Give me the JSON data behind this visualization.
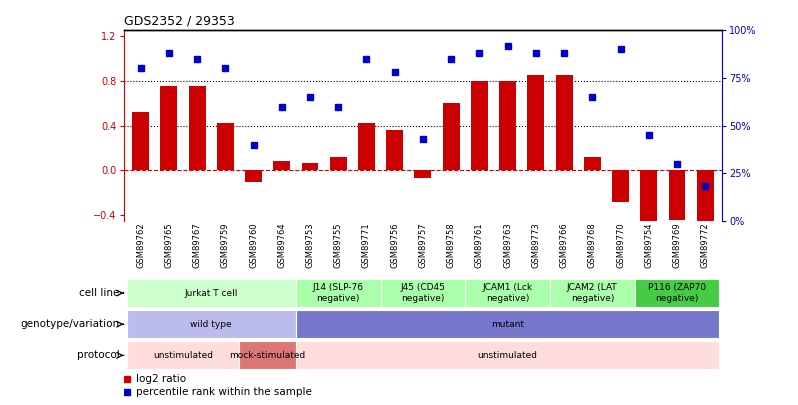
{
  "title": "GDS2352 / 29353",
  "samples": [
    "GSM89762",
    "GSM89765",
    "GSM89767",
    "GSM89759",
    "GSM89760",
    "GSM89764",
    "GSM89753",
    "GSM89755",
    "GSM89771",
    "GSM89756",
    "GSM89757",
    "GSM89758",
    "GSM89761",
    "GSM89763",
    "GSM89773",
    "GSM89766",
    "GSM89768",
    "GSM89770",
    "GSM89754",
    "GSM89769",
    "GSM89772"
  ],
  "log2_ratio": [
    0.52,
    0.75,
    0.75,
    0.42,
    -0.1,
    0.08,
    0.07,
    0.12,
    0.42,
    0.36,
    -0.07,
    0.6,
    0.8,
    0.8,
    0.85,
    0.85,
    0.12,
    -0.28,
    -0.55,
    -0.44,
    -0.48
  ],
  "percentile": [
    0.8,
    0.88,
    0.85,
    0.8,
    0.4,
    0.6,
    0.65,
    0.6,
    0.85,
    0.78,
    0.43,
    0.85,
    0.88,
    0.92,
    0.88,
    0.88,
    0.65,
    0.9,
    0.45,
    0.3,
    0.18
  ],
  "bar_color": "#cc0000",
  "dot_color": "#0000cc",
  "left_ylim": [
    -0.45,
    1.25
  ],
  "right_ylim": [
    0,
    100
  ],
  "left_yticks": [
    -0.4,
    0.0,
    0.4,
    0.8,
    1.2
  ],
  "right_yticks": [
    0,
    25,
    50,
    75,
    100
  ],
  "right_yticklabels": [
    "0%",
    "25%",
    "50%",
    "75%",
    "100%"
  ],
  "hlines": [
    0.8,
    0.4
  ],
  "cell_line_groups": [
    {
      "label": "Jurkat T cell",
      "start": 0,
      "end": 6,
      "color": "#ccffcc"
    },
    {
      "label": "J14 (SLP-76\nnegative)",
      "start": 6,
      "end": 9,
      "color": "#aaffaa"
    },
    {
      "label": "J45 (CD45\nnegative)",
      "start": 9,
      "end": 12,
      "color": "#aaffaa"
    },
    {
      "label": "JCAM1 (Lck\nnegative)",
      "start": 12,
      "end": 15,
      "color": "#aaffaa"
    },
    {
      "label": "JCAM2 (LAT\nnegative)",
      "start": 15,
      "end": 18,
      "color": "#aaffaa"
    },
    {
      "label": "P116 (ZAP70\nnegative)",
      "start": 18,
      "end": 21,
      "color": "#44cc44"
    }
  ],
  "genotype_groups": [
    {
      "label": "wild type",
      "start": 0,
      "end": 6,
      "color": "#bbbbee"
    },
    {
      "label": "mutant",
      "start": 6,
      "end": 21,
      "color": "#7777cc"
    }
  ],
  "protocol_groups": [
    {
      "label": "unstimulated",
      "start": 0,
      "end": 4,
      "color": "#ffdddd"
    },
    {
      "label": "mock-stimulated",
      "start": 4,
      "end": 6,
      "color": "#dd7777"
    },
    {
      "label": "unstimulated",
      "start": 6,
      "end": 21,
      "color": "#ffdddd"
    }
  ],
  "row_labels": [
    "cell line",
    "genotype/variation",
    "protocol"
  ],
  "legend": [
    {
      "label": "log2 ratio",
      "color": "#cc0000"
    },
    {
      "label": "percentile rank within the sample",
      "color": "#0000cc"
    }
  ]
}
